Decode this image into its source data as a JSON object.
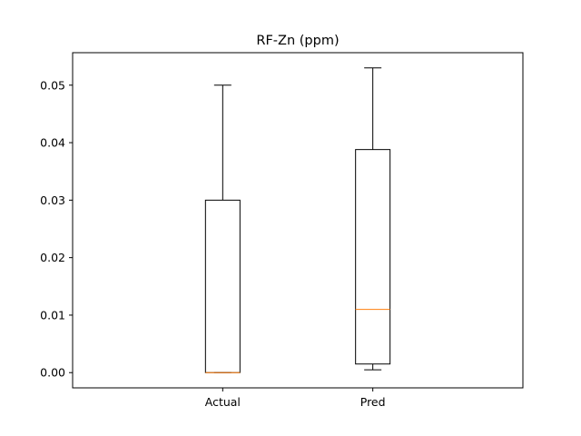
{
  "chart_data": {
    "type": "box",
    "title": "RF-Zn (ppm)",
    "xlabel": "",
    "ylabel": "",
    "categories": [
      "Actual",
      "Pred"
    ],
    "boxes": [
      {
        "label": "Actual",
        "whisker_low": 0.0,
        "q1": 0.0,
        "median": 0.0,
        "q3": 0.03,
        "whisker_high": 0.05
      },
      {
        "label": "Pred",
        "whisker_low": 0.0005,
        "q1": 0.0015,
        "median": 0.011,
        "q3": 0.0388,
        "whisker_high": 0.053
      }
    ],
    "ylim": [
      -0.00265,
      0.05565
    ],
    "yticks": [
      0.0,
      0.01,
      0.02,
      0.03,
      0.04,
      0.05
    ],
    "ytick_labels": [
      "0.00",
      "0.01",
      "0.02",
      "0.03",
      "0.04",
      "0.05"
    ],
    "grid": false,
    "legend": "none",
    "colors": {
      "box": "#000000",
      "median": "#ff7f0e",
      "axes": "#000000",
      "background": "#ffffff"
    }
  }
}
